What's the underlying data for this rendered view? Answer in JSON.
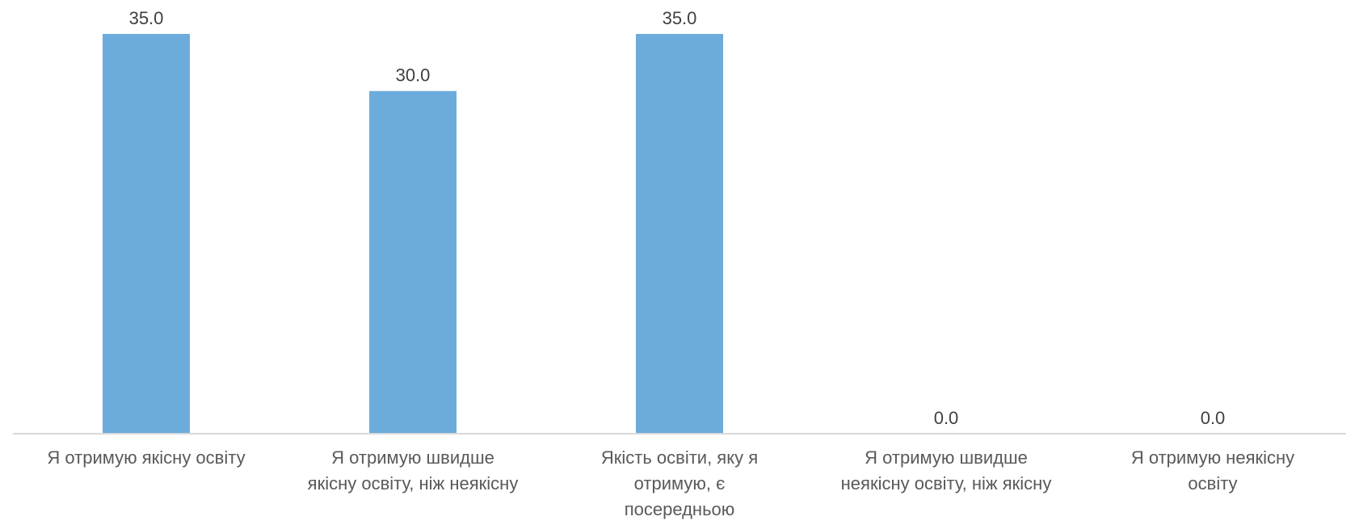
{
  "chart_data": {
    "type": "bar",
    "categories": [
      [
        "Я отримую якісну освіту"
      ],
      [
        "Я отримую швидше",
        "якісну освіту, ніж неякісну"
      ],
      [
        "Якість освіти, яку я",
        "отримую, є",
        "посередньою"
      ],
      [
        "Я отримую швидше",
        "неякісну освіту, ніж якісну"
      ],
      [
        "Я отримую неякісну",
        "освіту"
      ]
    ],
    "values": [
      35.0,
      30.0,
      35.0,
      0.0,
      0.0
    ],
    "value_labels": [
      "35.0",
      "30.0",
      "35.0",
      "0.0",
      "0.0"
    ],
    "ylim": [
      0,
      35
    ],
    "grid": false,
    "legend": "none",
    "colors": {
      "bar": "#6CACDC",
      "axis": "#D9D9D9"
    }
  }
}
